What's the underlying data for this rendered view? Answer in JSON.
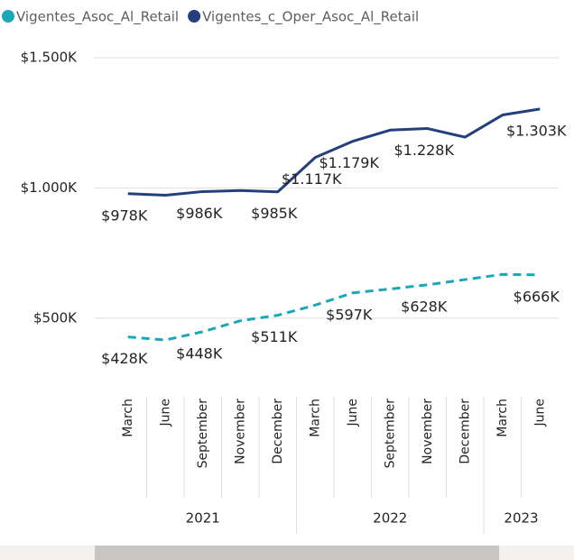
{
  "chart_data": {
    "type": "line",
    "categories": [
      "March",
      "June",
      "September",
      "November",
      "December",
      "March",
      "June",
      "September",
      "November",
      "December",
      "March",
      "June"
    ],
    "years": [
      "2021",
      "2022",
      "2023"
    ],
    "year_spans": [
      5,
      5,
      2
    ],
    "series": [
      {
        "name": "Vigentes_Asoc_Al_Retail",
        "color": "#1aa7b8",
        "dashed": true,
        "values": [
          428,
          416,
          448,
          490,
          511,
          550,
          597,
          612,
          628,
          648,
          668,
          666
        ],
        "value_labels": [
          "$428K",
          null,
          "$448K",
          null,
          "$511K",
          null,
          "$597K",
          null,
          "$628K",
          null,
          null,
          "$666K"
        ]
      },
      {
        "name": "Vigentes_c_Oper_Asoc_Al_Retail",
        "color": "#243f7c",
        "dashed": false,
        "values": [
          978,
          972,
          986,
          990,
          985,
          1117,
          1179,
          1222,
          1228,
          1195,
          1280,
          1303
        ],
        "value_labels": [
          "$978K",
          null,
          "$986K",
          null,
          "$985K",
          "$1.117K",
          "$1.179K",
          null,
          "$1.228K",
          null,
          null,
          "$1.303K"
        ]
      }
    ],
    "ylim": [
      250,
      1500
    ],
    "yticks": [
      {
        "value": 500,
        "label": "$500K"
      },
      {
        "value": 1000,
        "label": "$1.000K"
      },
      {
        "value": 1500,
        "label": "$1.500K"
      }
    ],
    "grid": true,
    "legend": "top"
  }
}
